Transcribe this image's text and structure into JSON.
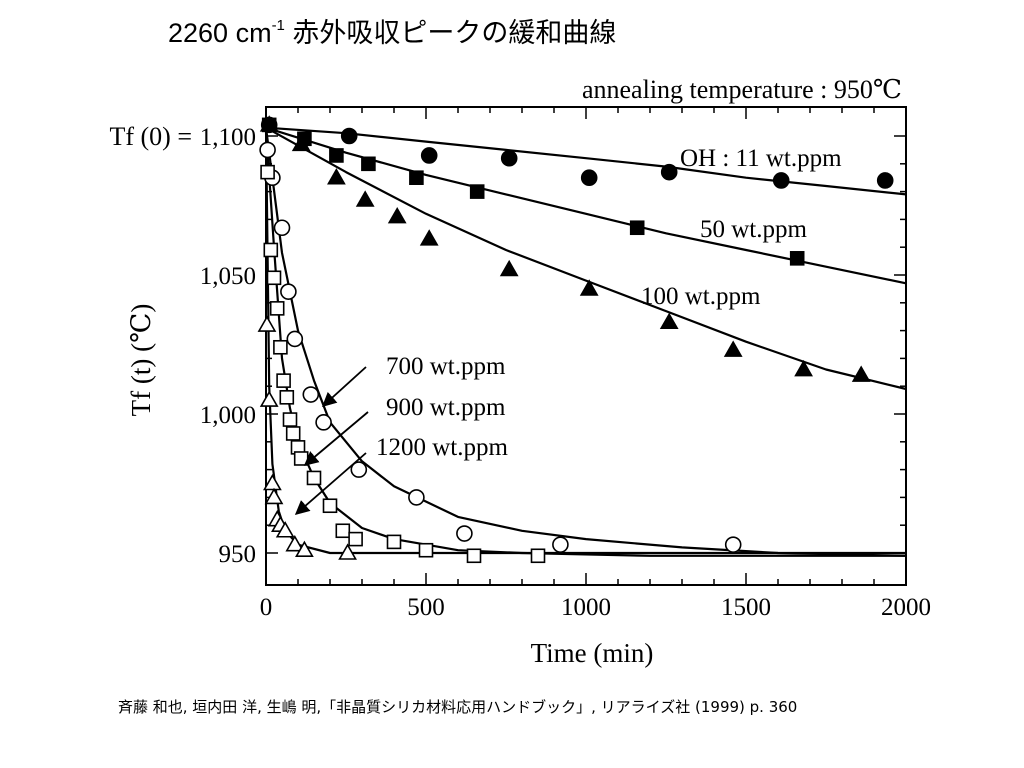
{
  "slide": {
    "title_main": "2260 cm",
    "title_sup": "-1",
    "title_rest": " 赤外吸収ピークの緩和曲線",
    "citation": "斉藤 和也, 垣内田 洋, 生嶋 明,「非晶質シリカ材料応用ハンドブック」, リアライズ社 (1999) p. 360"
  },
  "chart_data": {
    "type": "scatter",
    "annotation_top": "annealing temperature : 950℃",
    "xlabel": "Time (min)",
    "ylabel": "Tf (t) (℃)",
    "y_extra_label": "Tf (0) =",
    "xlim": [
      0,
      2000
    ],
    "ylim": [
      945,
      1105
    ],
    "x_ticks": [
      "0",
      "500",
      "1000",
      "1500",
      "2000"
    ],
    "x_tick_values": [
      0,
      500,
      1000,
      1500,
      2000
    ],
    "y_ticks": [
      "950",
      "1,000",
      "1,050",
      "1,100"
    ],
    "y_tick_values": [
      950,
      1000,
      1050,
      1100
    ],
    "grid": false,
    "series": [
      {
        "name": "OH : 11 wt.ppm",
        "marker": "filled-circle",
        "points": [
          [
            10,
            1104
          ],
          [
            260,
            1100
          ],
          [
            510,
            1093
          ],
          [
            760,
            1092
          ],
          [
            1010,
            1085
          ],
          [
            1260,
            1087
          ],
          [
            1610,
            1084
          ],
          [
            1935,
            1084
          ]
        ],
        "curve": [
          [
            0,
            1103
          ],
          [
            250,
            1101
          ],
          [
            500,
            1098
          ],
          [
            750,
            1095
          ],
          [
            1000,
            1092
          ],
          [
            1250,
            1089
          ],
          [
            1500,
            1085
          ],
          [
            1750,
            1082
          ],
          [
            2000,
            1079
          ]
        ]
      },
      {
        "name": "50 wt.ppm",
        "marker": "filled-square",
        "points": [
          [
            10,
            1104
          ],
          [
            120,
            1099
          ],
          [
            220,
            1093
          ],
          [
            320,
            1090
          ],
          [
            470,
            1085
          ],
          [
            660,
            1080
          ],
          [
            1160,
            1067
          ],
          [
            1660,
            1056
          ]
        ],
        "curve": [
          [
            0,
            1103
          ],
          [
            250,
            1094
          ],
          [
            500,
            1086
          ],
          [
            750,
            1079
          ],
          [
            1000,
            1072
          ],
          [
            1250,
            1065
          ],
          [
            1500,
            1059
          ],
          [
            1750,
            1053
          ],
          [
            2000,
            1047
          ]
        ]
      },
      {
        "name": "100 wt.ppm",
        "marker": "filled-triangle",
        "points": [
          [
            10,
            1104
          ],
          [
            110,
            1097
          ],
          [
            220,
            1085
          ],
          [
            310,
            1077
          ],
          [
            410,
            1071
          ],
          [
            510,
            1063
          ],
          [
            760,
            1052
          ],
          [
            1010,
            1045
          ],
          [
            1260,
            1033
          ],
          [
            1460,
            1023
          ],
          [
            1680,
            1016
          ],
          [
            1860,
            1014
          ]
        ],
        "curve": [
          [
            0,
            1103
          ],
          [
            250,
            1087
          ],
          [
            500,
            1072
          ],
          [
            750,
            1059
          ],
          [
            1000,
            1048
          ],
          [
            1250,
            1037
          ],
          [
            1500,
            1026
          ],
          [
            1750,
            1016
          ],
          [
            2000,
            1009
          ]
        ]
      },
      {
        "name": "700 wt.ppm",
        "marker": "open-circle",
        "points": [
          [
            5,
            1095
          ],
          [
            20,
            1085
          ],
          [
            50,
            1067
          ],
          [
            70,
            1044
          ],
          [
            90,
            1027
          ],
          [
            140,
            1007
          ],
          [
            180,
            997
          ],
          [
            290,
            980
          ],
          [
            470,
            970
          ],
          [
            620,
            957
          ],
          [
            920,
            953
          ],
          [
            1460,
            953
          ]
        ],
        "curve": [
          [
            0,
            1103
          ],
          [
            50,
            1058
          ],
          [
            100,
            1030
          ],
          [
            150,
            1012
          ],
          [
            200,
            997
          ],
          [
            300,
            983
          ],
          [
            400,
            974
          ],
          [
            600,
            963
          ],
          [
            800,
            958
          ],
          [
            1000,
            955
          ],
          [
            1300,
            952
          ],
          [
            1600,
            950
          ],
          [
            2000,
            949
          ]
        ]
      },
      {
        "name": "900 wt.ppm",
        "marker": "open-square",
        "points": [
          [
            5,
            1087
          ],
          [
            15,
            1059
          ],
          [
            25,
            1049
          ],
          [
            35,
            1038
          ],
          [
            45,
            1024
          ],
          [
            55,
            1012
          ],
          [
            65,
            1006
          ],
          [
            75,
            998
          ],
          [
            85,
            993
          ],
          [
            100,
            988
          ],
          [
            110,
            984
          ],
          [
            150,
            977
          ],
          [
            200,
            967
          ],
          [
            240,
            958
          ],
          [
            280,
            955
          ],
          [
            400,
            954
          ],
          [
            500,
            951
          ],
          [
            650,
            949
          ],
          [
            850,
            949
          ]
        ],
        "curve": [
          [
            0,
            1103
          ],
          [
            25,
            1060
          ],
          [
            50,
            1020
          ],
          [
            75,
            1002
          ],
          [
            100,
            990
          ],
          [
            150,
            977
          ],
          [
            200,
            968
          ],
          [
            300,
            959
          ],
          [
            400,
            955
          ],
          [
            600,
            951
          ],
          [
            800,
            950
          ],
          [
            1200,
            949
          ],
          [
            2000,
            949
          ]
        ]
      },
      {
        "name": "1200 wt.ppm",
        "marker": "open-triangle",
        "points": [
          [
            3,
            1032
          ],
          [
            10,
            1005
          ],
          [
            20,
            975
          ],
          [
            25,
            970
          ],
          [
            35,
            962
          ],
          [
            45,
            960
          ],
          [
            60,
            958
          ],
          [
            90,
            953
          ],
          [
            120,
            951
          ],
          [
            255,
            950
          ]
        ],
        "curve": [
          [
            0,
            1103
          ],
          [
            10,
            1010
          ],
          [
            20,
            982
          ],
          [
            40,
            965
          ],
          [
            60,
            958
          ],
          [
            100,
            953
          ],
          [
            200,
            950
          ],
          [
            2000,
            950
          ]
        ]
      }
    ],
    "arrow_labels": [
      "700 wt.ppm",
      "900 wt.ppm",
      "1200 wt.ppm"
    ]
  }
}
